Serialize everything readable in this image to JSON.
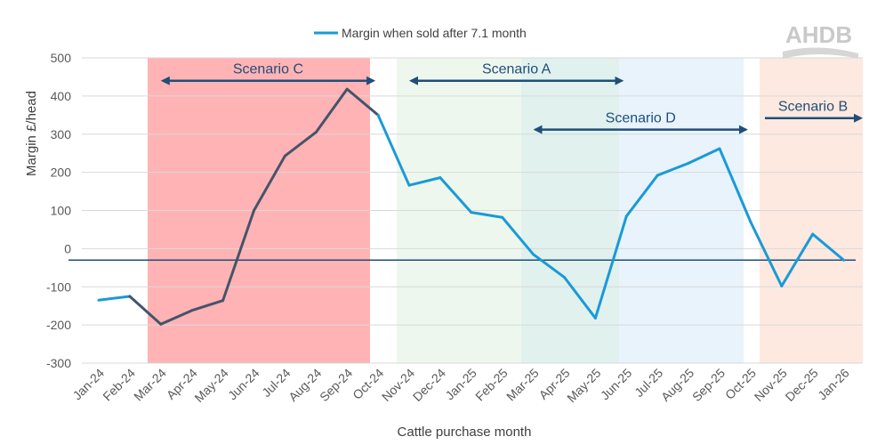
{
  "logo": {
    "text": "AHDB"
  },
  "colors": {
    "line_blue": "#1a9ad6",
    "line_dark": "#44546a",
    "scenario_c_bg": "#ffb3b5",
    "scenario_a_bg": "#eef7ee",
    "scenario_d_bg": "#e8f3fb",
    "scenario_overlap_bg": "#e0f1ee",
    "scenario_b_bg": "#fde9e0",
    "arrow": "#1f4e79",
    "zero_line": "#1f4e79",
    "grid": "#d9d9d9"
  },
  "chart_data": {
    "type": "line",
    "title": "",
    "xlabel": "Cattle purchase month",
    "ylabel": "Margin £/head",
    "ylim": [
      -300,
      500
    ],
    "yticks": [
      500,
      400,
      300,
      200,
      100,
      0,
      -100,
      -200,
      -300
    ],
    "grid": true,
    "legend_position": "top",
    "reference_line_y": -30,
    "categories": [
      "Jan-24",
      "Feb-24",
      "Mar-24",
      "Apr-24",
      "May-24",
      "Jun-24",
      "Jul-24",
      "Aug-24",
      "Sep-24",
      "Oct-24",
      "Nov-24",
      "Dec-24",
      "Jan-25",
      "Feb-25",
      "Mar-25",
      "Apr-25",
      "May-25",
      "Jun-25",
      "Jul-25",
      "Aug-25",
      "Sep-25",
      "Oct-25",
      "Nov-25",
      "Dec-25",
      "Jan-26"
    ],
    "series": [
      {
        "name": "Margin when sold after 7.1 month",
        "values": [
          -135,
          -125,
          -198,
          -162,
          -136,
          100,
          243,
          305,
          418,
          350,
          166,
          186,
          95,
          82,
          -15,
          -75,
          -182,
          85,
          192,
          224,
          262,
          70,
          -98,
          38,
          -30
        ]
      }
    ],
    "scenarios": [
      {
        "label": "Scenario C",
        "start": "Mar-24",
        "end": "Oct-24",
        "level": 440
      },
      {
        "label": "Scenario A",
        "start": "Nov-24",
        "end": "Jun-25",
        "level": 440
      },
      {
        "label": "Scenario D",
        "start": "Mar-25",
        "end": "Oct-25",
        "level": 312
      },
      {
        "label": "Scenario B",
        "start": "Nov-25",
        "end": "Jan-26",
        "level": 342
      }
    ]
  }
}
